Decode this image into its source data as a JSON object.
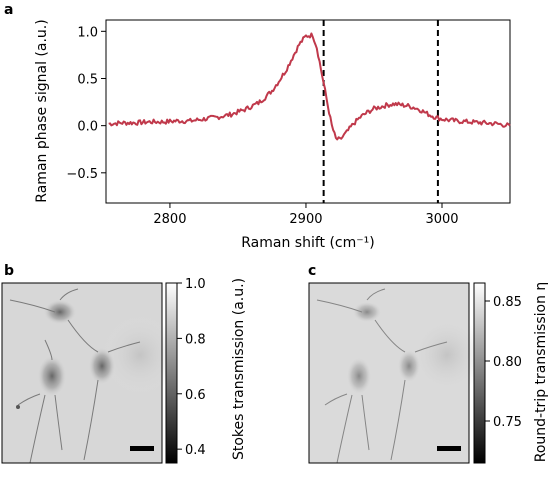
{
  "panel_letters": {
    "a": "a",
    "b": "b",
    "c": "c"
  },
  "colors": {
    "trace": "#c0394b",
    "marker_line": "#000000",
    "axis": "#000000"
  },
  "chart_data": [
    {
      "type": "line",
      "panel": "a",
      "title": "",
      "xlabel": "Raman shift (cm⁻¹)",
      "ylabel": "Raman phase signal (a.u.)",
      "xlim": [
        2753,
        3050
      ],
      "ylim": [
        -0.82,
        1.12
      ],
      "xticks": [
        2800,
        2900,
        3000
      ],
      "yticks": [
        -0.5,
        0.0,
        0.5,
        1.0
      ],
      "xtick_labels": [
        "2800",
        "2900",
        "3000"
      ],
      "ytick_labels": [
        "−0.5",
        "0.0",
        "0.5",
        "1.0"
      ],
      "grid": false,
      "markers": [
        2913,
        2997
      ],
      "series": [
        {
          "x": [
            2755,
            2765,
            2775,
            2785,
            2795,
            2805,
            2815,
            2825,
            2835,
            2845,
            2855,
            2865,
            2870,
            2875,
            2880,
            2885,
            2890,
            2895,
            2900,
            2905,
            2908,
            2911,
            2913,
            2916,
            2919,
            2922,
            2925,
            2930,
            2935,
            2940,
            2945,
            2950,
            2955,
            2960,
            2965,
            2970,
            2975,
            2980,
            2985,
            2990,
            2995,
            3000,
            3005,
            3010,
            3020,
            3030,
            3040,
            3050
          ],
          "y": [
            0.02,
            0.03,
            0.03,
            0.04,
            0.04,
            0.05,
            0.05,
            0.07,
            0.09,
            0.12,
            0.17,
            0.24,
            0.3,
            0.37,
            0.47,
            0.58,
            0.72,
            0.86,
            0.95,
            0.96,
            0.83,
            0.6,
            0.45,
            0.22,
            0.0,
            -0.14,
            -0.15,
            -0.07,
            0.02,
            0.09,
            0.14,
            0.18,
            0.2,
            0.22,
            0.23,
            0.22,
            0.21,
            0.19,
            0.16,
            0.12,
            0.09,
            0.07,
            0.06,
            0.05,
            0.04,
            0.03,
            0.02,
            0.0
          ]
        }
      ]
    },
    {
      "type": "image",
      "panel": "b",
      "colorbar_label": "Stokes transmission (a.u.)",
      "colorbar_range": [
        0.35,
        1.0
      ],
      "colorbar_ticks": [
        "1.0",
        "0.8",
        "0.6",
        "0.4"
      ],
      "colorbar_tick_values": [
        1.0,
        0.8,
        0.6,
        0.4
      ]
    },
    {
      "type": "image",
      "panel": "c",
      "colorbar_label": "Round-trip transmission η",
      "colorbar_range": [
        0.715,
        0.865
      ],
      "colorbar_ticks": [
        "0.85",
        "0.80",
        "0.75"
      ],
      "colorbar_tick_values": [
        0.85,
        0.8,
        0.75
      ]
    }
  ]
}
